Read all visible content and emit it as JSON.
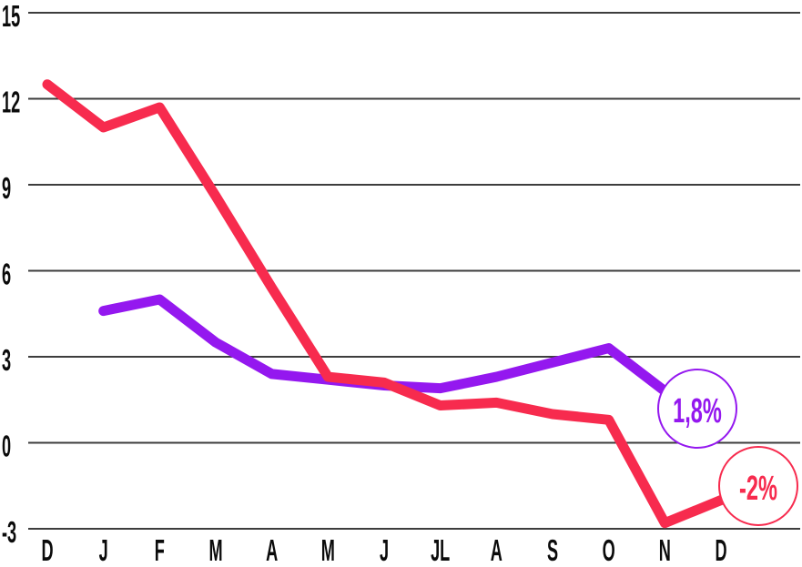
{
  "chart_data": {
    "type": "line",
    "categories": [
      "D",
      "J",
      "F",
      "M",
      "A",
      "M",
      "J",
      "JL",
      "A",
      "S",
      "O",
      "N",
      "D"
    ],
    "series": [
      {
        "name": "purple-series",
        "color": "#9418ef",
        "values": [
          null,
          4.6,
          5.0,
          3.5,
          2.4,
          2.2,
          2.0,
          1.9,
          2.3,
          2.8,
          3.3,
          1.8,
          null
        ],
        "end_label": "1,8%"
      },
      {
        "name": "red-series",
        "color": "#f72b4e",
        "values": [
          12.5,
          11.0,
          11.7,
          8.6,
          5.4,
          2.3,
          2.1,
          1.3,
          1.4,
          1.0,
          0.8,
          -2.8,
          -2.0
        ],
        "end_label": "-2%"
      }
    ],
    "y_ticks": [
      15,
      12,
      9,
      6,
      3,
      0,
      -3
    ],
    "ylim": [
      -3,
      15
    ],
    "grid": true,
    "legend": "none",
    "end_labels": [
      {
        "text": "1,8%",
        "color": "#9418ef",
        "cx": 766,
        "cy": 449,
        "r": 43
      },
      {
        "text": "-2%",
        "color": "#f72b4e",
        "cx": 833,
        "cy": 534,
        "r": 43
      }
    ],
    "title": "",
    "xlabel": "",
    "ylabel": ""
  },
  "colors": {
    "grid": "#3d3d3d",
    "axis_text": "#0b0b0b",
    "background": "#ffffff"
  }
}
